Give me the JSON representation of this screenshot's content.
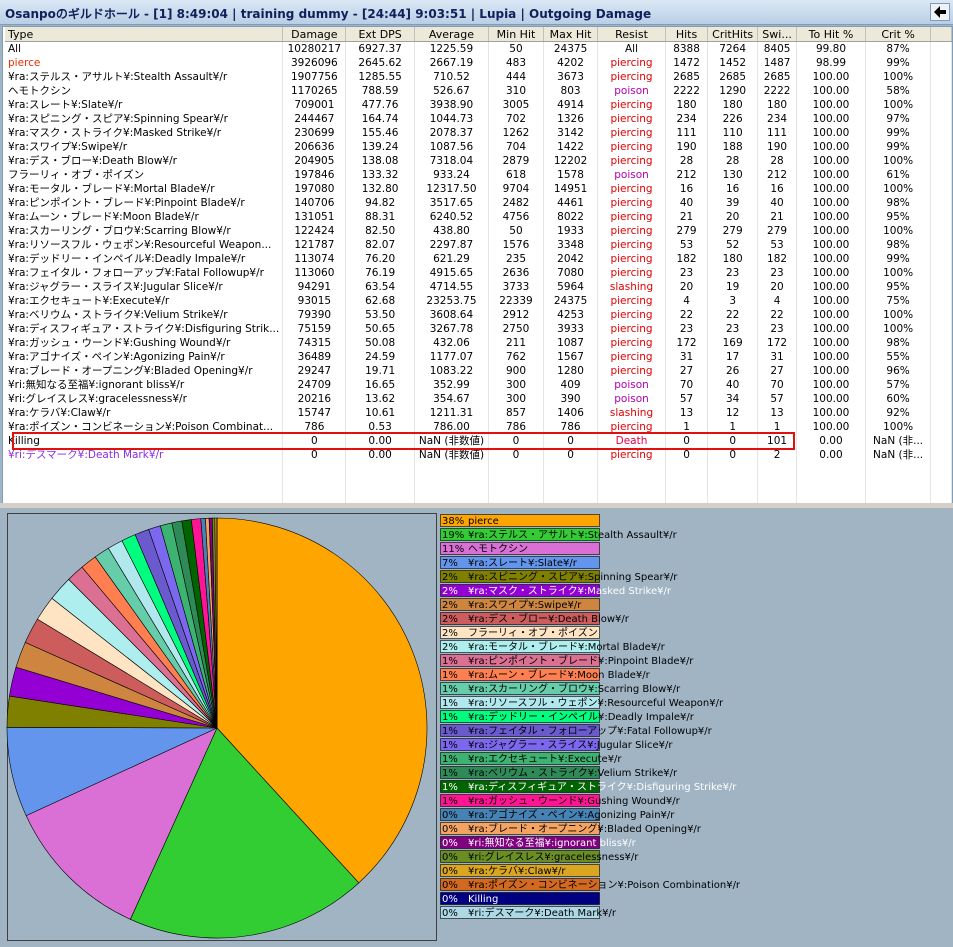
{
  "title": "Osanpoのギルドホール - [1] 8:49:04  | training dummy - [24:44] 9:03:51 | Lupia | Outgoing Damage",
  "table": {
    "columns": [
      "Type",
      "Damage",
      "Ext DPS",
      "Average",
      "Min Hit",
      "Max Hit",
      "Resist",
      "Hits",
      "CritHits",
      "Swi...",
      "To Hit %",
      "Crit %"
    ],
    "rows": [
      [
        "All",
        "10280217",
        "6927.37",
        "1225.59",
        "50",
        "24375",
        "All",
        "8388",
        "7264",
        "8405",
        "99.80",
        "87%"
      ],
      [
        "pierce",
        "3926096",
        "2645.62",
        "2667.19",
        "483",
        "4202",
        "piercing",
        "1472",
        "1452",
        "1487",
        "98.99",
        "99%"
      ],
      [
        "¥ra:ステルス・アサルト¥:Stealth Assault¥/r",
        "1907756",
        "1285.55",
        "710.52",
        "444",
        "3673",
        "piercing",
        "2685",
        "2685",
        "2685",
        "100.00",
        "100%"
      ],
      [
        "ヘモトクシン",
        "1170265",
        "788.59",
        "526.67",
        "310",
        "803",
        "poison",
        "2222",
        "1290",
        "2222",
        "100.00",
        "58%"
      ],
      [
        "¥ra:スレート¥:Slate¥/r",
        "709001",
        "477.76",
        "3938.90",
        "3005",
        "4914",
        "piercing",
        "180",
        "180",
        "180",
        "100.00",
        "100%"
      ],
      [
        "¥ra:スピニング・スピア¥:Spinning Spear¥/r",
        "244467",
        "164.74",
        "1044.73",
        "702",
        "1326",
        "piercing",
        "234",
        "226",
        "234",
        "100.00",
        "97%"
      ],
      [
        "¥ra:マスク・ストライク¥:Masked Strike¥/r",
        "230699",
        "155.46",
        "2078.37",
        "1262",
        "3142",
        "piercing",
        "111",
        "110",
        "111",
        "100.00",
        "99%"
      ],
      [
        "¥ra:スワイプ¥:Swipe¥/r",
        "206636",
        "139.24",
        "1087.56",
        "704",
        "1422",
        "piercing",
        "190",
        "188",
        "190",
        "100.00",
        "99%"
      ],
      [
        "¥ra:デス・ブロー¥:Death Blow¥/r",
        "204905",
        "138.08",
        "7318.04",
        "2879",
        "12202",
        "piercing",
        "28",
        "28",
        "28",
        "100.00",
        "100%"
      ],
      [
        "フラーリィ・オブ・ポイズン",
        "197846",
        "133.32",
        "933.24",
        "618",
        "1578",
        "poison",
        "212",
        "130",
        "212",
        "100.00",
        "61%"
      ],
      [
        "¥ra:モータル・ブレード¥:Mortal Blade¥/r",
        "197080",
        "132.80",
        "12317.50",
        "9704",
        "14951",
        "piercing",
        "16",
        "16",
        "16",
        "100.00",
        "100%"
      ],
      [
        "¥ra:ピンポイント・ブレード¥:Pinpoint Blade¥/r",
        "140706",
        "94.82",
        "3517.65",
        "2482",
        "4461",
        "piercing",
        "40",
        "39",
        "40",
        "100.00",
        "98%"
      ],
      [
        "¥ra:ムーン・ブレード¥:Moon Blade¥/r",
        "131051",
        "88.31",
        "6240.52",
        "4756",
        "8022",
        "piercing",
        "21",
        "20",
        "21",
        "100.00",
        "95%"
      ],
      [
        "¥ra:スカーリング・ブロウ¥:Scarring Blow¥/r",
        "122424",
        "82.50",
        "438.80",
        "50",
        "1933",
        "piercing",
        "279",
        "279",
        "279",
        "100.00",
        "100%"
      ],
      [
        "¥ra:リソースフル・ウェポン¥:Resourceful Weapon...",
        "121787",
        "82.07",
        "2297.87",
        "1576",
        "3348",
        "piercing",
        "53",
        "52",
        "53",
        "100.00",
        "98%"
      ],
      [
        "¥ra:デッドリー・インペイル¥:Deadly Impale¥/r",
        "113074",
        "76.20",
        "621.29",
        "235",
        "2042",
        "piercing",
        "182",
        "180",
        "182",
        "100.00",
        "99%"
      ],
      [
        "¥ra:フェイタル・フォローアップ¥:Fatal Followup¥/r",
        "113060",
        "76.19",
        "4915.65",
        "2636",
        "7080",
        "piercing",
        "23",
        "23",
        "23",
        "100.00",
        "100%"
      ],
      [
        "¥ra:ジャグラー・スライス¥:Jugular Slice¥/r",
        "94291",
        "63.54",
        "4714.55",
        "3733",
        "5964",
        "slashing",
        "20",
        "19",
        "20",
        "100.00",
        "95%"
      ],
      [
        "¥ra:エクセキュート¥:Execute¥/r",
        "93015",
        "62.68",
        "23253.75",
        "22339",
        "24375",
        "piercing",
        "4",
        "3",
        "4",
        "100.00",
        "75%"
      ],
      [
        "¥ra:ベリウム・ストライク¥:Velium Strike¥/r",
        "79390",
        "53.50",
        "3608.64",
        "2912",
        "4253",
        "piercing",
        "22",
        "22",
        "22",
        "100.00",
        "100%"
      ],
      [
        "¥ra:ディスフィギュア・ストライク¥:Disfiguring Strik...",
        "75159",
        "50.65",
        "3267.78",
        "2750",
        "3933",
        "piercing",
        "23",
        "23",
        "23",
        "100.00",
        "100%"
      ],
      [
        "¥ra:ガッシュ・ウーンド¥:Gushing Wound¥/r",
        "74315",
        "50.08",
        "432.06",
        "211",
        "1087",
        "piercing",
        "172",
        "169",
        "172",
        "100.00",
        "98%"
      ],
      [
        "¥ra:アゴナイズ・ペイン¥:Agonizing Pain¥/r",
        "36489",
        "24.59",
        "1177.07",
        "762",
        "1567",
        "piercing",
        "31",
        "17",
        "31",
        "100.00",
        "55%"
      ],
      [
        "¥ra:ブレード・オープニング¥:Bladed Opening¥/r",
        "29247",
        "19.71",
        "1083.22",
        "900",
        "1280",
        "piercing",
        "27",
        "26",
        "27",
        "100.00",
        "96%"
      ],
      [
        "¥ri:無知なる至福¥:ignorant bliss¥/r",
        "24709",
        "16.65",
        "352.99",
        "300",
        "409",
        "poison",
        "70",
        "40",
        "70",
        "100.00",
        "57%"
      ],
      [
        "¥ri:グレイスレス¥:gracelessness¥/r",
        "20216",
        "13.62",
        "354.67",
        "300",
        "390",
        "poison",
        "57",
        "34",
        "57",
        "100.00",
        "60%"
      ],
      [
        "¥ra:ケラバ¥:Claw¥/r",
        "15747",
        "10.61",
        "1211.31",
        "857",
        "1406",
        "slashing",
        "13",
        "12",
        "13",
        "100.00",
        "92%"
      ],
      [
        "¥ra:ポイズン・コンビネーション¥:Poison Combinat...",
        "786",
        "0.53",
        "786.00",
        "786",
        "786",
        "piercing",
        "1",
        "1",
        "1",
        "100.00",
        "100%"
      ],
      [
        "Killing",
        "0",
        "0.00",
        "NaN (非数値)",
        "0",
        "0",
        "Death",
        "0",
        "0",
        "101",
        "0.00",
        "NaN (非..."
      ],
      [
        "¥ri:デスマーク¥:Death Mark¥/r",
        "0",
        "0.00",
        "NaN (非数値)",
        "0",
        "0",
        "piercing",
        "0",
        "0",
        "2",
        "0.00",
        "NaN (非..."
      ]
    ],
    "type_colors": [
      "#000000",
      "#e03000",
      "#000000",
      "#000000",
      "#000000",
      "#000000",
      "#000000",
      "#000000",
      "#000000",
      "#000000",
      "#000000",
      "#000000",
      "#000000",
      "#000000",
      "#000000",
      "#000000",
      "#000000",
      "#000000",
      "#000000",
      "#000000",
      "#000000",
      "#000000",
      "#000000",
      "#000000",
      "#000000",
      "#000000",
      "#000000",
      "#000000",
      "#000000",
      "#8a2be2"
    ],
    "resist_colors": [
      "#000000",
      "#e00000",
      "#e00000",
      "#b000b0",
      "#e00000",
      "#e00000",
      "#e00000",
      "#e00000",
      "#e00000",
      "#b000b0",
      "#e00000",
      "#e00000",
      "#e00000",
      "#e00000",
      "#e00000",
      "#e00000",
      "#e00000",
      "#e00000",
      "#e00000",
      "#e00000",
      "#e00000",
      "#e00000",
      "#e00000",
      "#e00000",
      "#b000b0",
      "#b000b0",
      "#e00000",
      "#e00000",
      "#e00040",
      "#e00000"
    ],
    "highlight_row": 28
  },
  "chart_data": {
    "type": "pie",
    "categories": [
      "pierce",
      "¥ra:ステルス・アサルト¥:Stealth Assault¥/r",
      "ヘモトクシン",
      "¥ra:スレート¥:Slate¥/r",
      "¥ra:スピニング・スピア¥:Spinning Spear¥/r",
      "¥ra:マスク・ストライク¥:Masked Strike¥/r",
      "¥ra:スワイプ¥:Swipe¥/r",
      "¥ra:デス・ブロー¥:Death Blow¥/r",
      "フラーリィ・オブ・ポイズン",
      "¥ra:モータル・ブレード¥:Mortal Blade¥/r",
      "¥ra:ピンポイント・ブレード¥:Pinpoint Blade¥/r",
      "¥ra:ムーン・ブレード¥:Moon Blade¥/r",
      "¥ra:スカーリング・ブロウ¥:Scarring Blow¥/r",
      "¥ra:リソースフル・ウェポン¥:Resourceful Weapon¥/r",
      "¥ra:デッドリー・インペイル¥:Deadly Impale¥/r",
      "¥ra:フェイタル・フォローアップ¥:Fatal Followup¥/r",
      "¥ra:ジャグラー・スライス¥:Jugular Slice¥/r",
      "¥ra:エクセキュート¥:Execute¥/r",
      "¥ra:ベリウム・ストライク¥:Velium Strike¥/r",
      "¥ra:ディスフィギュア・ストライク¥:Disfiguring Strike¥/r",
      "¥ra:ガッシュ・ウーンド¥:Gushing Wound¥/r",
      "¥ra:アゴナイズ・ペイン¥:Agonizing Pain¥/r",
      "¥ra:ブレード・オープニング¥:Bladed Opening¥/r",
      "¥ri:無知なる至福¥:ignorant bliss¥/r",
      "¥ri:グレイスレス¥:gracelessness¥/r",
      "¥ra:ケラバ¥:Claw¥/r",
      "¥ra:ポイズン・コンビネーション¥:Poison Combination¥/r",
      "Killing",
      "¥ri:デスマーク¥:Death Mark¥/r"
    ],
    "values": [
      38.19,
      18.56,
      11.38,
      6.9,
      2.38,
      2.24,
      2.01,
      1.99,
      1.92,
      1.92,
      1.37,
      1.27,
      1.19,
      1.18,
      1.1,
      1.1,
      0.92,
      0.9,
      0.77,
      0.73,
      0.72,
      0.35,
      0.28,
      0.24,
      0.2,
      0.15,
      0.01,
      0,
      0
    ],
    "value_labels": [
      "38%",
      "19%",
      "11%",
      "7%",
      "2%",
      "2%",
      "2%",
      "2%",
      "2%",
      "2%",
      "1%",
      "1%",
      "1%",
      "1%",
      "1%",
      "1%",
      "1%",
      "1%",
      "1%",
      "1%",
      "1%",
      "0%",
      "0%",
      "0%",
      "0%",
      "0%",
      "0%",
      "0%",
      "0%"
    ],
    "colors": [
      "#ffa500",
      "#32cd32",
      "#da70d6",
      "#6495ed",
      "#808000",
      "#9400d3",
      "#cd853f",
      "#cd5c5c",
      "#ffe4c4",
      "#afeeee",
      "#db7093",
      "#ff7f50",
      "#66cdaa",
      "#b0e8ee",
      "#00ff7f",
      "#6a5acd",
      "#7b68ee",
      "#3cb371",
      "#2e8b57",
      "#006400",
      "#ff1493",
      "#4682b4",
      "#f4a460",
      "#800080",
      "#6b8e23",
      "#daa520",
      "#d2691e",
      "#000080",
      "#add8e6"
    ]
  }
}
